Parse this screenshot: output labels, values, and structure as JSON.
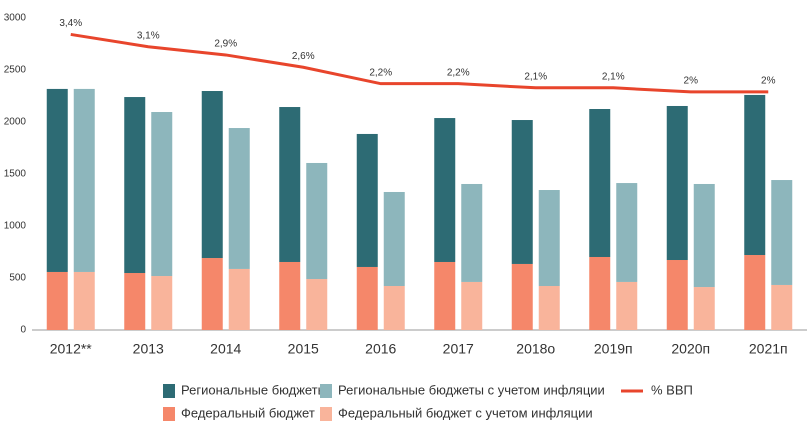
{
  "chart_data": {
    "type": "bar",
    "categories": [
      "2012**",
      "2013",
      "2014",
      "2015",
      "2016",
      "2017",
      "2018о",
      "2019п",
      "2020п",
      "2021п"
    ],
    "series": [
      {
        "name": "Федеральный бюджет",
        "color": "#f5876a",
        "values": [
          558,
          548,
          692,
          654,
          606,
          654,
          635,
          702,
          673,
          721
        ]
      },
      {
        "name": "Региональные бюджеты",
        "color": "#2d6b74",
        "values": [
          1760,
          1692,
          1606,
          1490,
          1279,
          1384,
          1384,
          1423,
          1481,
          1539
        ]
      },
      {
        "name": "Федеральный бюджет с учетом инфляции",
        "color": "#f9b49b",
        "values": [
          558,
          519,
          587,
          490,
          423,
          462,
          423,
          462,
          413,
          433
        ]
      },
      {
        "name": "Региональные бюджеты с учетом инфляции",
        "color": "#8db6bc",
        "values": [
          1760,
          1577,
          1355,
          1116,
          904,
          942,
          923,
          951,
          991,
          1009
        ]
      },
      {
        "name": "% ВВП",
        "type": "line",
        "axis": "y2",
        "color": "#e8452c",
        "values": [
          3.4,
          3.1,
          2.9,
          2.6,
          2.2,
          2.2,
          2.1,
          2.1,
          2,
          2
        ],
        "value_labels": [
          "3,4%",
          "3,1%",
          "2,9%",
          "2,6%",
          "2,2%",
          "2,2%",
          "2,1%",
          "2,1%",
          "2%",
          "2%"
        ]
      }
    ],
    "ylim": [
      0,
      3000
    ],
    "yticks": [
      0,
      500,
      1000,
      1500,
      2000,
      2500,
      3000
    ],
    "y2lim": [
      -3.8,
      3.8
    ],
    "grid": false
  }
}
